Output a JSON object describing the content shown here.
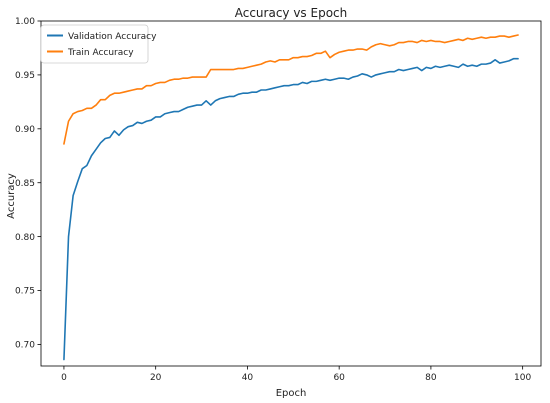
{
  "chart_data": {
    "type": "line",
    "title": "Accuracy vs Epoch",
    "xlabel": "Epoch",
    "ylabel": "Accuracy",
    "xlim": [
      -5,
      104
    ],
    "ylim": [
      0.68,
      1.0
    ],
    "xticks": [
      0,
      20,
      40,
      60,
      80,
      100
    ],
    "yticks": [
      0.7,
      0.75,
      0.8,
      0.85,
      0.9,
      0.95,
      1.0
    ],
    "xtick_labels": [
      "0",
      "20",
      "40",
      "60",
      "80",
      "100"
    ],
    "ytick_labels": [
      "0.70",
      "0.75",
      "0.80",
      "0.85",
      "0.90",
      "0.95",
      "1.00"
    ],
    "grid": false,
    "legend_position": "top-left",
    "x": [
      0,
      1,
      2,
      3,
      4,
      5,
      6,
      7,
      8,
      9,
      10,
      11,
      12,
      13,
      14,
      15,
      16,
      17,
      18,
      19,
      20,
      21,
      22,
      23,
      24,
      25,
      26,
      27,
      28,
      29,
      30,
      31,
      32,
      33,
      34,
      35,
      36,
      37,
      38,
      39,
      40,
      41,
      42,
      43,
      44,
      45,
      46,
      47,
      48,
      49,
      50,
      51,
      52,
      53,
      54,
      55,
      56,
      57,
      58,
      59,
      60,
      61,
      62,
      63,
      64,
      65,
      66,
      67,
      68,
      69,
      70,
      71,
      72,
      73,
      74,
      75,
      76,
      77,
      78,
      79,
      80,
      81,
      82,
      83,
      84,
      85,
      86,
      87,
      88,
      89,
      90,
      91,
      92,
      93,
      94,
      95,
      96,
      97,
      98,
      99
    ],
    "series": [
      {
        "name": "Validation Accuracy",
        "color": "#1f77b4",
        "values": [
          0.686,
          0.8,
          0.838,
          0.851,
          0.863,
          0.866,
          0.875,
          0.881,
          0.887,
          0.891,
          0.892,
          0.898,
          0.894,
          0.899,
          0.902,
          0.903,
          0.906,
          0.905,
          0.907,
          0.908,
          0.911,
          0.911,
          0.914,
          0.915,
          0.916,
          0.916,
          0.918,
          0.92,
          0.921,
          0.922,
          0.922,
          0.926,
          0.922,
          0.926,
          0.928,
          0.929,
          0.93,
          0.93,
          0.932,
          0.933,
          0.933,
          0.934,
          0.934,
          0.936,
          0.936,
          0.937,
          0.938,
          0.939,
          0.94,
          0.94,
          0.941,
          0.941,
          0.943,
          0.942,
          0.944,
          0.944,
          0.945,
          0.946,
          0.945,
          0.946,
          0.947,
          0.947,
          0.946,
          0.948,
          0.949,
          0.951,
          0.95,
          0.948,
          0.95,
          0.951,
          0.952,
          0.953,
          0.953,
          0.955,
          0.954,
          0.955,
          0.956,
          0.957,
          0.954,
          0.957,
          0.956,
          0.958,
          0.957,
          0.958,
          0.959,
          0.958,
          0.957,
          0.96,
          0.958,
          0.959,
          0.958,
          0.96,
          0.96,
          0.961,
          0.964,
          0.961,
          0.962,
          0.963,
          0.965,
          0.965
        ]
      },
      {
        "name": "Train Accuracy",
        "color": "#ff7f0e",
        "values": [
          0.886,
          0.907,
          0.914,
          0.916,
          0.917,
          0.919,
          0.919,
          0.922,
          0.927,
          0.927,
          0.931,
          0.933,
          0.933,
          0.934,
          0.935,
          0.936,
          0.937,
          0.937,
          0.94,
          0.94,
          0.942,
          0.943,
          0.943,
          0.945,
          0.946,
          0.946,
          0.947,
          0.947,
          0.948,
          0.948,
          0.948,
          0.948,
          0.955,
          0.955,
          0.955,
          0.955,
          0.955,
          0.955,
          0.956,
          0.956,
          0.957,
          0.958,
          0.959,
          0.96,
          0.962,
          0.963,
          0.962,
          0.964,
          0.964,
          0.964,
          0.966,
          0.966,
          0.967,
          0.967,
          0.968,
          0.97,
          0.97,
          0.972,
          0.966,
          0.969,
          0.971,
          0.972,
          0.973,
          0.973,
          0.974,
          0.974,
          0.973,
          0.976,
          0.978,
          0.979,
          0.978,
          0.977,
          0.978,
          0.98,
          0.98,
          0.981,
          0.981,
          0.98,
          0.982,
          0.981,
          0.982,
          0.981,
          0.981,
          0.98,
          0.981,
          0.982,
          0.983,
          0.982,
          0.984,
          0.983,
          0.984,
          0.985,
          0.984,
          0.985,
          0.985,
          0.986,
          0.986,
          0.985,
          0.986,
          0.987
        ]
      }
    ]
  }
}
